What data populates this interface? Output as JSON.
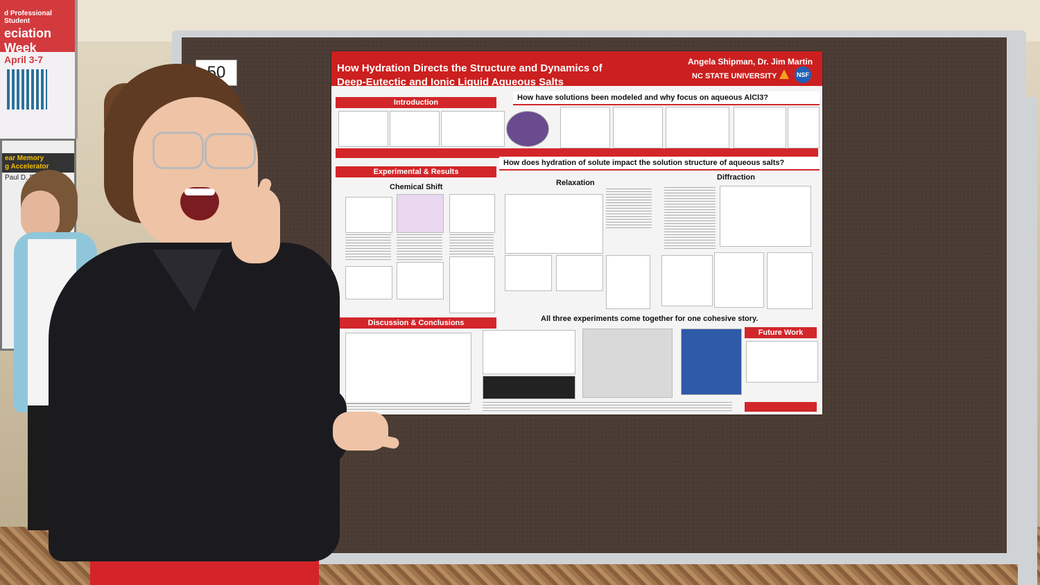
{
  "background_poster": {
    "line1": "d Professional Student",
    "line2": "eciation Week",
    "date": "April 3-7"
  },
  "background_poster2": {
    "title_a": "ear Memory",
    "title_b": "g Accelerator",
    "author": "Paul D. Franzon"
  },
  "board": {
    "number": "50"
  },
  "poster": {
    "title_line1": "How Hydration Directs the Structure and Dynamics of",
    "title_line2": "Deep-Eutectic and Ionic Liquid Aqueous Salts",
    "authors": "Angela Shipman, Dr. Jim Martin",
    "university": "NC STATE UNIVERSITY",
    "nsf_logo": "NSF",
    "sections": {
      "introduction": "Introduction",
      "question1": "How have solutions been modeled and why focus on aqueous AlCl3?",
      "experimental": "Experimental & Results",
      "question2": "How does hydration of solute impact the solution structure of aqueous salts?",
      "chemical_shift": "Chemical Shift",
      "relaxation": "Relaxation",
      "diffraction": "Diffraction",
      "discussion": "Discussion & Conclusions",
      "cohesive": "All three experiments come together for one cohesive story.",
      "future_work": "Future Work"
    }
  }
}
